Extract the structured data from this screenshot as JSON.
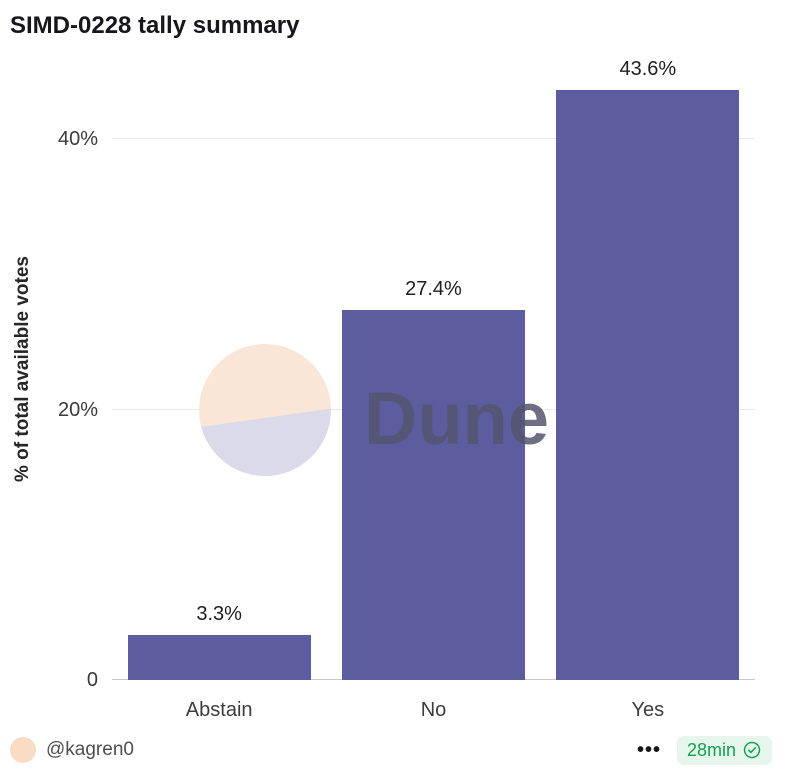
{
  "chart_data": {
    "type": "bar",
    "title": "SIMD-0228 tally summary",
    "categories": [
      "Abstain",
      "No",
      "Yes"
    ],
    "values": [
      3.3,
      27.4,
      43.6
    ],
    "value_labels": [
      "3.3%",
      "27.4%",
      "43.6%"
    ],
    "xlabel": "",
    "ylabel": "% of total available votes",
    "ylim": [
      0,
      46
    ],
    "yticks": [
      {
        "value": 0,
        "label": "0"
      },
      {
        "value": 20,
        "label": "20%"
      },
      {
        "value": 40,
        "label": "40%"
      }
    ],
    "grid": "horizontal",
    "legend": "none",
    "bar_color": "#5b5d9f"
  },
  "watermark": {
    "text": "Dune",
    "logo": "dune-logo-icon"
  },
  "footer": {
    "author": "@kagren0",
    "menu": "•••",
    "time_badge": "28min",
    "badge_icon": "verified-check-icon"
  },
  "colors": {
    "title": "#16161d",
    "bar": "#5b5d9f",
    "grid": "#e8e8e8",
    "axis": "#c9c9c9",
    "watermark_text": "#54546e",
    "logo_peach": "#fae4d4",
    "logo_lavender": "#d9d8e8",
    "avatar": "#f8dcc3",
    "badge_bg": "#e7f6ed",
    "badge_text": "#12a150"
  }
}
